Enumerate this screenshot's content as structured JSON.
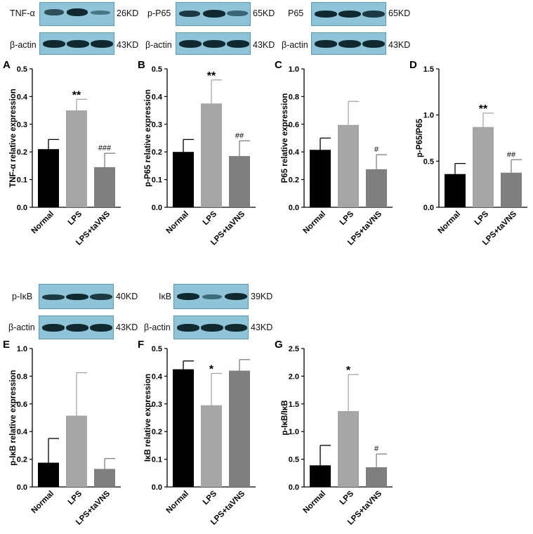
{
  "blots": [
    {
      "id": "tnfa",
      "label": "TNF-α",
      "kd": "26KD",
      "actin": "β-actin",
      "actin_kd": "43KD"
    },
    {
      "id": "pp65",
      "label": "p-P65",
      "kd": "65KD",
      "actin": "β-actin",
      "actin_kd": "43KD"
    },
    {
      "id": "p65",
      "label": "P65",
      "kd": "65KD",
      "actin": "β-actin",
      "actin_kd": "43KD"
    },
    {
      "id": "pikb",
      "label": "p-IκB",
      "kd": "40KD",
      "actin": "β-actin",
      "actin_kd": "43KD"
    },
    {
      "id": "ikb",
      "label": "IκB",
      "kd": "39KD",
      "actin": "β-actin",
      "actin_kd": "43KD"
    }
  ],
  "colors": {
    "normal": "#000000",
    "lps": "#a6a6a6",
    "taVNS": "#7f7f7f",
    "blot_bg": "#8ec3d8",
    "band": "#10282f"
  },
  "chart_data": [
    {
      "panel": "A",
      "type": "bar",
      "categories": [
        "Normal",
        "LPS",
        "LPS+taVNS"
      ],
      "values": [
        0.21,
        0.35,
        0.145
      ],
      "errors": [
        0.035,
        0.04,
        0.05
      ],
      "annotations": [
        "",
        "**",
        "###"
      ],
      "ylabel": "TNF-α relative expression",
      "ylim": [
        0,
        0.5
      ],
      "yticks": [
        "0.0",
        "0.1",
        "0.2",
        "0.3",
        "0.4",
        "0.5"
      ]
    },
    {
      "panel": "B",
      "type": "bar",
      "categories": [
        "Normal",
        "LPS",
        "LPS+taVNS"
      ],
      "values": [
        0.2,
        0.375,
        0.185
      ],
      "errors": [
        0.045,
        0.085,
        0.055
      ],
      "annotations": [
        "",
        "**",
        "##"
      ],
      "ylabel": "p-P65 relative expression",
      "ylim": [
        0,
        0.5
      ],
      "yticks": [
        "0.0",
        "0.1",
        "0.2",
        "0.3",
        "0.4",
        "0.5"
      ]
    },
    {
      "panel": "C",
      "type": "bar",
      "categories": [
        "Normal",
        "LPS",
        "LPS+taVNS"
      ],
      "values": [
        0.415,
        0.595,
        0.275
      ],
      "errors": [
        0.085,
        0.17,
        0.105
      ],
      "annotations": [
        "",
        "",
        "#"
      ],
      "ylabel": "P65 relative expression",
      "ylim": [
        0,
        1.0
      ],
      "yticks": [
        "0.0",
        "0.2",
        "0.4",
        "0.6",
        "0.8",
        "1.0"
      ]
    },
    {
      "panel": "D",
      "type": "bar",
      "categories": [
        "Normal",
        "LPS",
        "LPS+taVNS"
      ],
      "values": [
        0.36,
        0.87,
        0.375
      ],
      "errors": [
        0.115,
        0.15,
        0.14
      ],
      "annotations": [
        "",
        "**",
        "##"
      ],
      "ylabel": "p-P65/P65",
      "ylim": [
        0,
        1.5
      ],
      "yticks": [
        "0.0",
        "0.5",
        "1.0",
        "1.5"
      ]
    },
    {
      "panel": "E",
      "type": "bar",
      "categories": [
        "Normal",
        "LPS",
        "LPS+taVNS"
      ],
      "values": [
        0.175,
        0.515,
        0.13
      ],
      "errors": [
        0.175,
        0.31,
        0.075
      ],
      "annotations": [
        "",
        "",
        ""
      ],
      "ylabel": "p-IκB relative expression",
      "ylim": [
        0,
        1.0
      ],
      "yticks": [
        "0.0",
        "0.2",
        "0.4",
        "0.6",
        "0.8",
        "1.0"
      ]
    },
    {
      "panel": "F",
      "type": "bar",
      "categories": [
        "Normal",
        "LPS",
        "LPS+taVNS"
      ],
      "values": [
        0.425,
        0.295,
        0.42
      ],
      "errors": [
        0.03,
        0.115,
        0.04
      ],
      "annotations": [
        "",
        "*",
        ""
      ],
      "ylabel": "IκB relative expression",
      "ylim": [
        0,
        0.5
      ],
      "yticks": [
        "0.0",
        "0.1",
        "0.2",
        "0.3",
        "0.4",
        "0.5"
      ]
    },
    {
      "panel": "G",
      "type": "bar",
      "categories": [
        "Normal",
        "LPS",
        "LPS+taVNS"
      ],
      "values": [
        0.39,
        1.37,
        0.355
      ],
      "errors": [
        0.36,
        0.66,
        0.24
      ],
      "annotations": [
        "",
        "*",
        "#"
      ],
      "ylabel": "p-IκB/IκB",
      "ylim": [
        0,
        2.5
      ],
      "yticks": [
        "0.0",
        "0.5",
        "1.0",
        "1.5",
        "2.0",
        "2.5"
      ]
    }
  ]
}
